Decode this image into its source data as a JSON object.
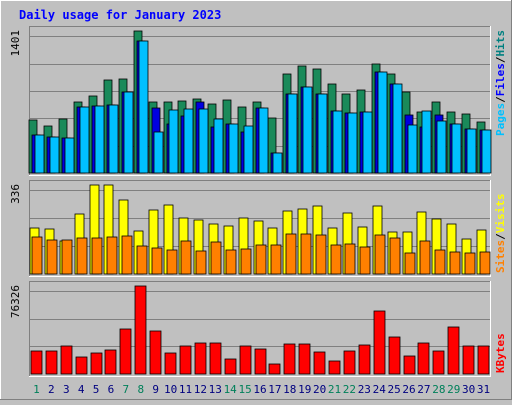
{
  "chart_data": {
    "title": "Daily usage for January 2023",
    "type": "bar",
    "days": [
      "1",
      "2",
      "3",
      "4",
      "5",
      "6",
      "7",
      "8",
      "9",
      "10",
      "11",
      "12",
      "13",
      "14",
      "15",
      "16",
      "17",
      "18",
      "19",
      "20",
      "21",
      "22",
      "23",
      "24",
      "25",
      "26",
      "27",
      "28",
      "29",
      "30",
      "31"
    ],
    "weekend_days": [
      "1",
      "7",
      "8",
      "14",
      "15",
      "21",
      "22",
      "28",
      "29"
    ],
    "panels": [
      {
        "name": "hits-files-pages",
        "ymax_label": "1401",
        "ymax": 1401,
        "right_label": [
          "Pages",
          "/",
          "Files",
          "/",
          "Hits"
        ],
        "right_label_colors": [
          "#00c0ff",
          "#000000",
          "#0000ff",
          "#000000",
          "#008080"
        ],
        "series": [
          {
            "name": "Hits",
            "color": "#1a8a5a",
            "values": [
              520,
              460,
              530,
              700,
              760,
              920,
              930,
              1401,
              700,
              700,
              710,
              730,
              680,
              720,
              650,
              700,
              540,
              980,
              1060,
              1030,
              880,
              780,
              820,
              1080,
              980,
              800,
              600,
              700,
              600,
              580,
              500
            ]
          },
          {
            "name": "Files",
            "color": "#0000e0",
            "values": [
              370,
              360,
              350,
              650,
              660,
              670,
              800,
              1300,
              640,
              480,
              560,
              700,
              450,
              480,
              400,
              640,
              200,
              780,
              850,
              780,
              610,
              590,
              600,
              1000,
              880,
              570,
              450,
              570,
              480,
              430,
              420
            ]
          },
          {
            "name": "Pages",
            "color": "#00c0ff",
            "values": [
              370,
              360,
              350,
              650,
              660,
              670,
              800,
              1300,
              400,
              620,
              630,
              630,
              530,
              480,
              460,
              640,
              200,
              780,
              850,
              780,
              610,
              590,
              600,
              1000,
              880,
              470,
              610,
              510,
              480,
              430,
              420
            ]
          }
        ]
      },
      {
        "name": "visits-sites",
        "ymax_label": "336",
        "ymax": 336,
        "right_label": [
          "Sites",
          "/",
          "Visits"
        ],
        "right_label_colors": [
          "#ff8000",
          "#000000",
          "#ffff00"
        ],
        "series": [
          {
            "name": "Visits",
            "color": "#ffff00",
            "values": [
              175,
              170,
              125,
              228,
              336,
              336,
              278,
              162,
              243,
              262,
              213,
              203,
              190,
              180,
              210,
              200,
              175,
              239,
              245,
              257,
              175,
              229,
              178,
              255,
              160,
              157,
              233,
              206,
              188,
              132,
              165
            ]
          },
          {
            "name": "Sites",
            "color": "#ff8000",
            "values": [
              140,
              130,
              128,
              135,
              136,
              138,
              144,
              105,
              98,
              92,
              125,
              88,
              120,
              92,
              94,
              110,
              110,
              150,
              150,
              146,
              110,
              115,
              103,
              148,
              135,
              80,
              123,
              92,
              84,
              80,
              84
            ]
          }
        ]
      },
      {
        "name": "kbytes",
        "ymax_label": "76326",
        "ymax": 76326,
        "right_label": [
          "KBytes"
        ],
        "right_label_colors": [
          "#ff0000"
        ],
        "series": [
          {
            "name": "KBytes",
            "color": "#ff0000",
            "values": [
              20000,
              20000,
              24000,
              15000,
              18000,
              21000,
              39000,
              76326,
              37000,
              18000,
              24000,
              27000,
              27000,
              13000,
              24000,
              22000,
              9000,
              26000,
              26000,
              19000,
              11000,
              20000,
              25000,
              55000,
              32000,
              16000,
              27000,
              20000,
              41000,
              24000,
              24000
            ]
          }
        ]
      }
    ]
  }
}
